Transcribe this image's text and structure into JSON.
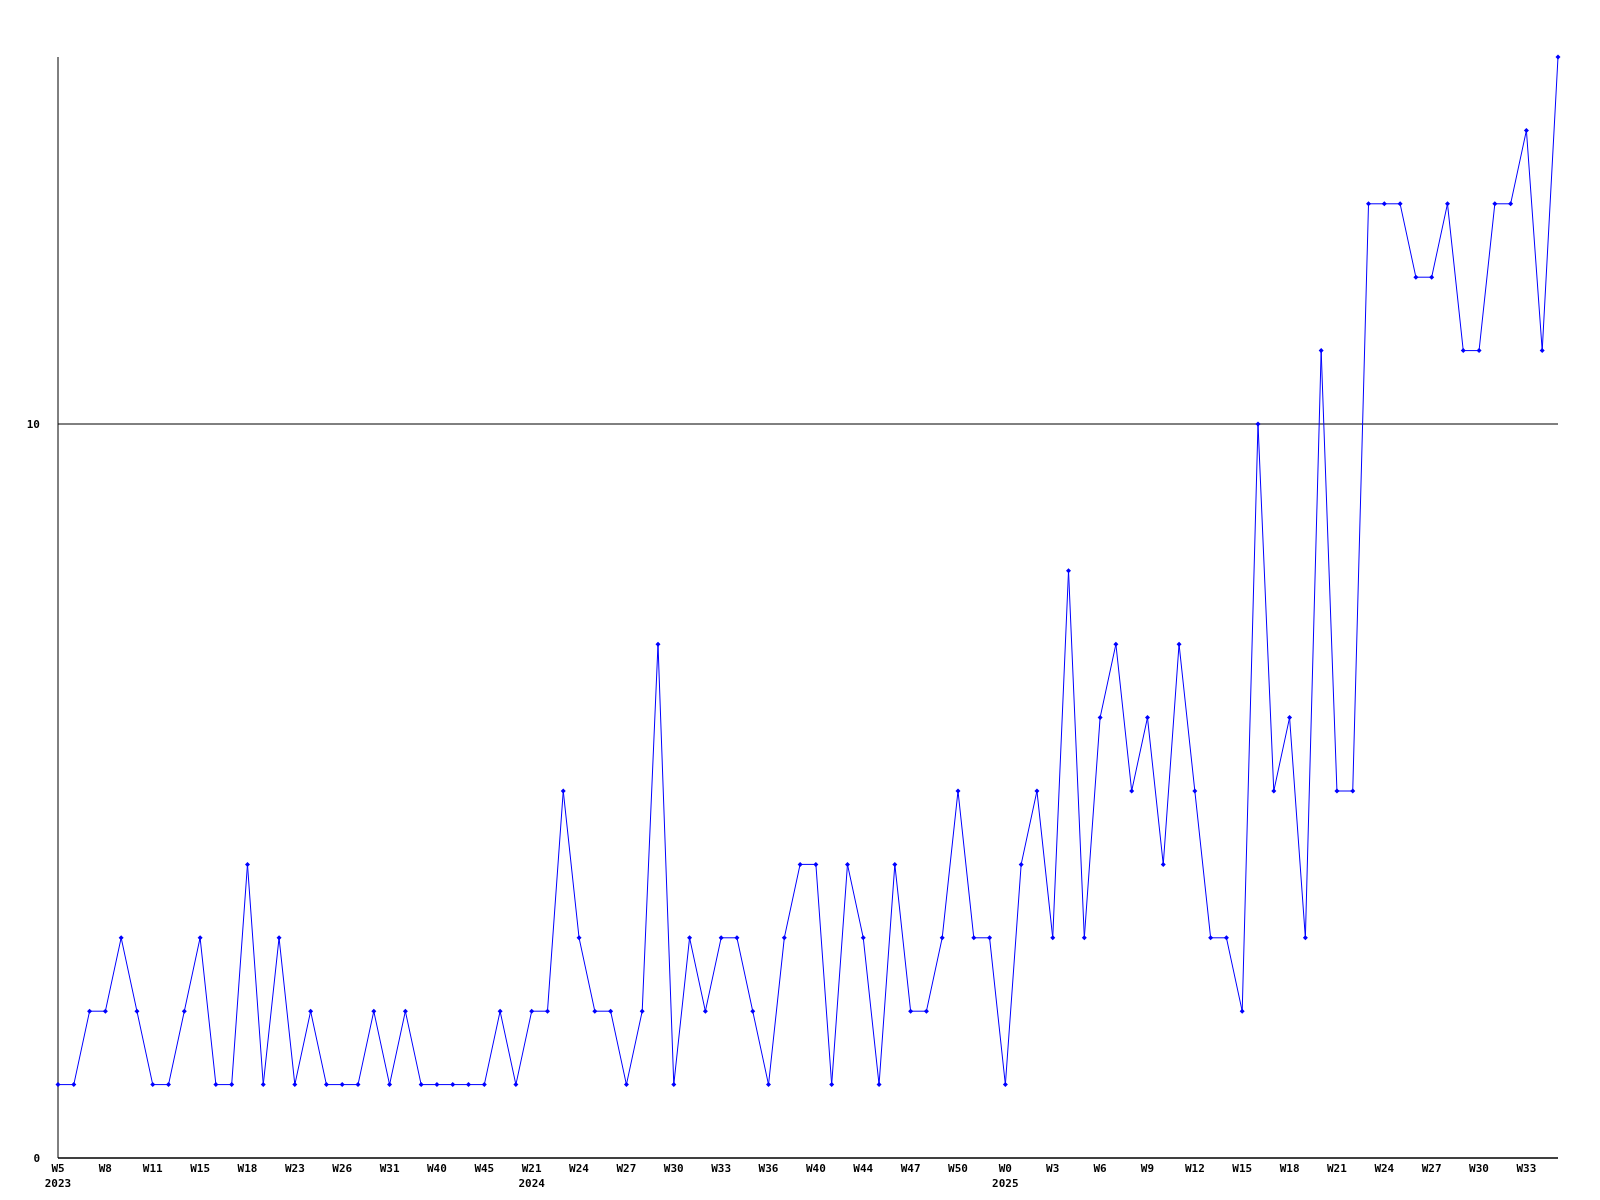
{
  "chart_data": {
    "type": "line",
    "categories": [
      "W5\n2023",
      null,
      null,
      "W8",
      null,
      null,
      "W11",
      null,
      null,
      "W15",
      null,
      null,
      "W18",
      null,
      null,
      "W23",
      null,
      null,
      "W26",
      null,
      null,
      "W31",
      null,
      null,
      "W40",
      null,
      null,
      "W45",
      null,
      null,
      "W21\n2024",
      null,
      null,
      "W24",
      null,
      null,
      "W27",
      null,
      null,
      "W30",
      null,
      null,
      "W33",
      null,
      null,
      "W36",
      null,
      null,
      "W40",
      null,
      null,
      "W44",
      null,
      null,
      "W47",
      null,
      null,
      "W50",
      null,
      null,
      "W0\n2025",
      null,
      null,
      "W3",
      null,
      null,
      "W6",
      null,
      null,
      "W9",
      null,
      null,
      "W12",
      null,
      null,
      "W15",
      null,
      null,
      "W18",
      null,
      null,
      "W21",
      null,
      null,
      "W24",
      null,
      null,
      "W27",
      null,
      null,
      "W30",
      null,
      null,
      "W33",
      null,
      null
    ],
    "series": [
      {
        "color": "#0000ff",
        "values": [
          1,
          1,
          2,
          2,
          3,
          2,
          1,
          1,
          2,
          3,
          1,
          1,
          4,
          1,
          3,
          1,
          2,
          1,
          1,
          1,
          2,
          1,
          2,
          1,
          1,
          1,
          1,
          1,
          2,
          1,
          2,
          2,
          5,
          3,
          2,
          2,
          1,
          2,
          7,
          1,
          3,
          2,
          3,
          3,
          2,
          1,
          3,
          4,
          4,
          1,
          4,
          3,
          1,
          4,
          2,
          2,
          3,
          5,
          3,
          3,
          1,
          4,
          5,
          3,
          8,
          3,
          6,
          7,
          5,
          6,
          4,
          7,
          5,
          3,
          3,
          2,
          10,
          5,
          6,
          3,
          11,
          5,
          5,
          13,
          13,
          13,
          12,
          12,
          13,
          11,
          11,
          13,
          13,
          14,
          11,
          15
        ]
      }
    ],
    "ylim": [
      0,
      15
    ],
    "yticks": [
      0,
      10
    ],
    "grid": "y",
    "marker": "diamond",
    "line_style": "solid"
  }
}
